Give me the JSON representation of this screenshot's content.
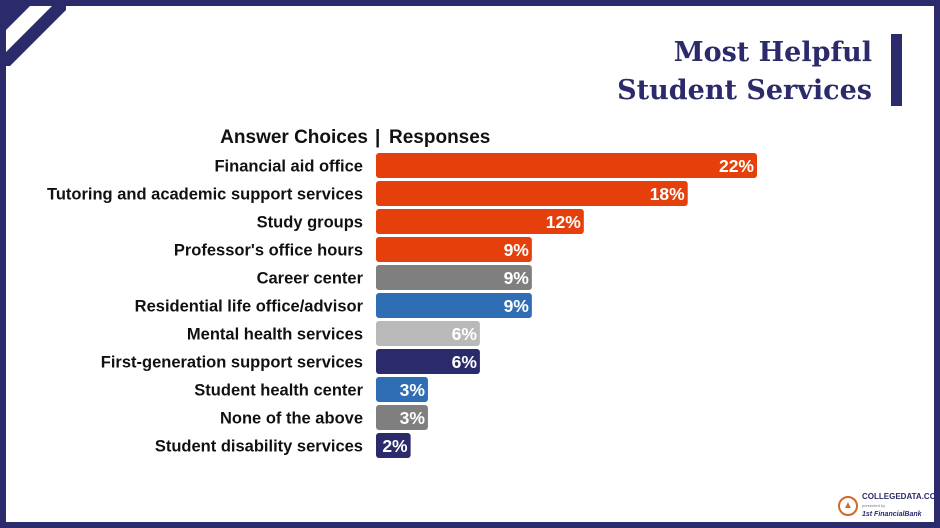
{
  "header": {
    "answer_choices": "Answer Choices",
    "separator": "|",
    "responses": "Responses"
  },
  "logo": {
    "name": "COLLEGEDATA.COM",
    "tagline": "presented by",
    "sponsor": "1st FinancialBank"
  },
  "chart_data": {
    "type": "bar",
    "orientation": "horizontal",
    "title": "Most Helpful Student Services",
    "title_lines": [
      "Most Helpful",
      "Student Services"
    ],
    "xlabel": "Responses",
    "ylabel": "Answer Choices",
    "value_suffix": "%",
    "xlim": [
      0,
      22
    ],
    "categories": [
      "Financial aid office",
      "Tutoring and academic support services",
      "Study groups",
      "Professor's office hours",
      "Career center",
      "Residential life office/advisor",
      "Mental health services",
      "First-generation support services",
      "Student health center",
      "None of the above",
      "Student disability services"
    ],
    "values": [
      22,
      18,
      12,
      9,
      9,
      9,
      6,
      6,
      3,
      3,
      2
    ],
    "colors": [
      "#e5400b",
      "#e5400b",
      "#e5400b",
      "#e5400b",
      "#7f7f7f",
      "#2f6db5",
      "#b9b9b9",
      "#2b2a6b",
      "#2f6db5",
      "#7f7f7f",
      "#2b2a6b"
    ]
  }
}
